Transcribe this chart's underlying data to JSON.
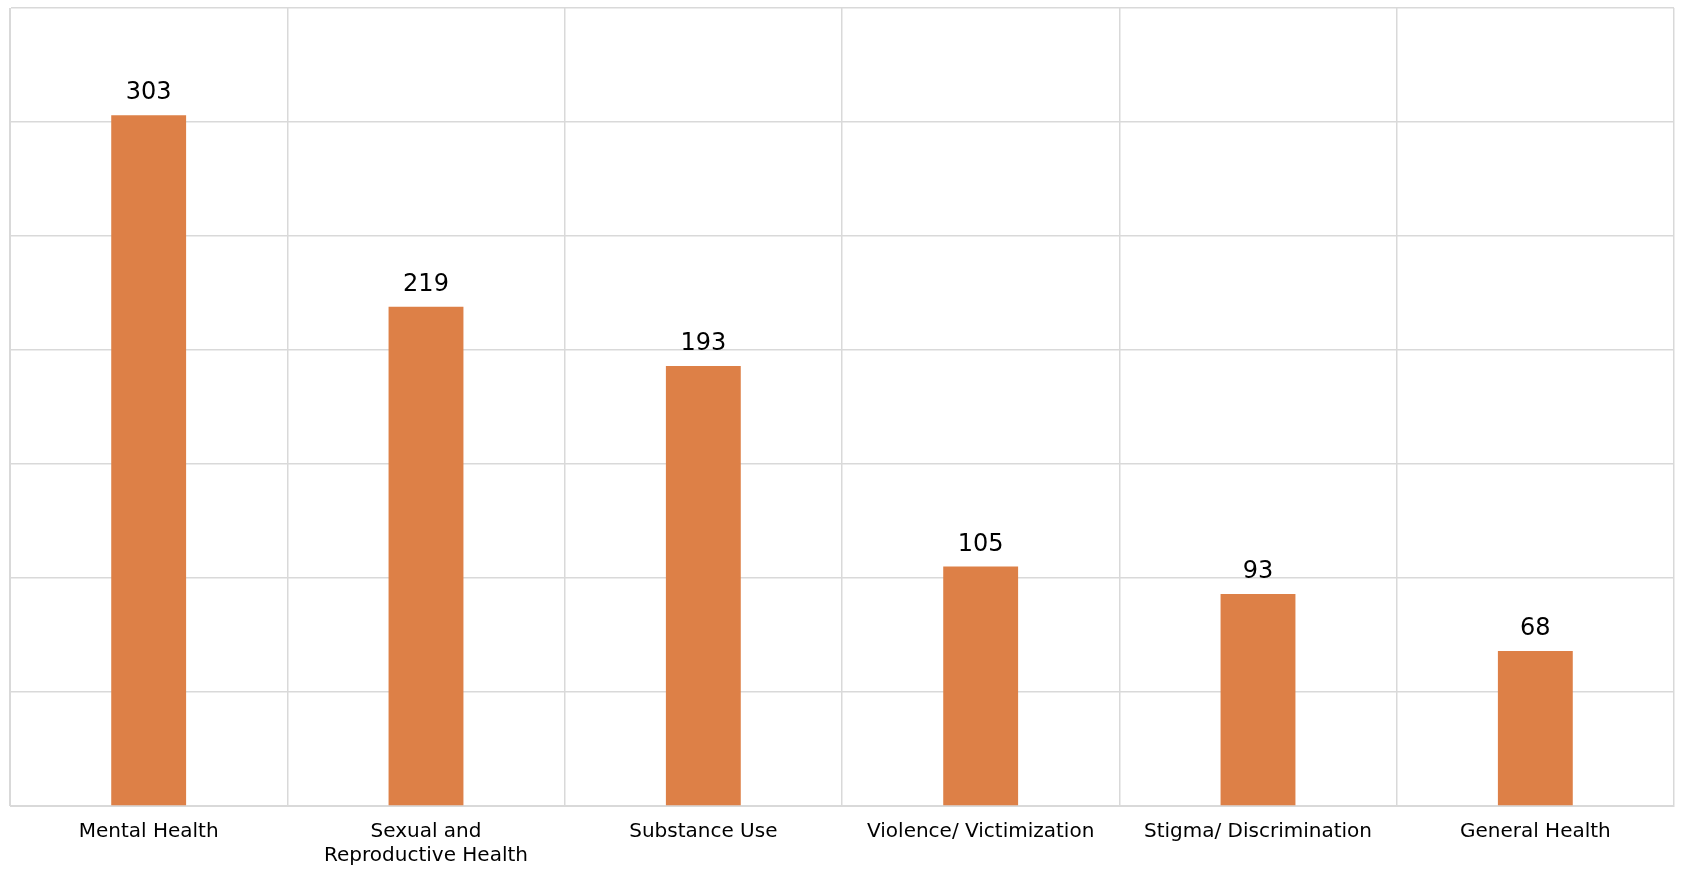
{
  "chart_data": {
    "type": "bar",
    "categories": [
      "Mental Health",
      "Sexual and Reproductive Health",
      "Substance Use",
      "Violence/ Victimization",
      "Stigma/ Discrimination",
      "General Health"
    ],
    "values": [
      303,
      219,
      193,
      105,
      93,
      68
    ],
    "color": "#dd8047",
    "ylim": [
      0,
      350
    ],
    "yticks": [
      {
        "value": 0,
        "label": null
      },
      {
        "value": 50,
        "label": null
      },
      {
        "value": 100,
        "label": null
      },
      {
        "value": 150,
        "label": null
      },
      {
        "value": 200,
        "label": null
      },
      {
        "value": 250,
        "label": null
      },
      {
        "value": 300,
        "label": null
      },
      {
        "value": 350,
        "label": null
      }
    ],
    "grid": true,
    "tick_labels": "x",
    "data_labels": true,
    "legend": false
  }
}
